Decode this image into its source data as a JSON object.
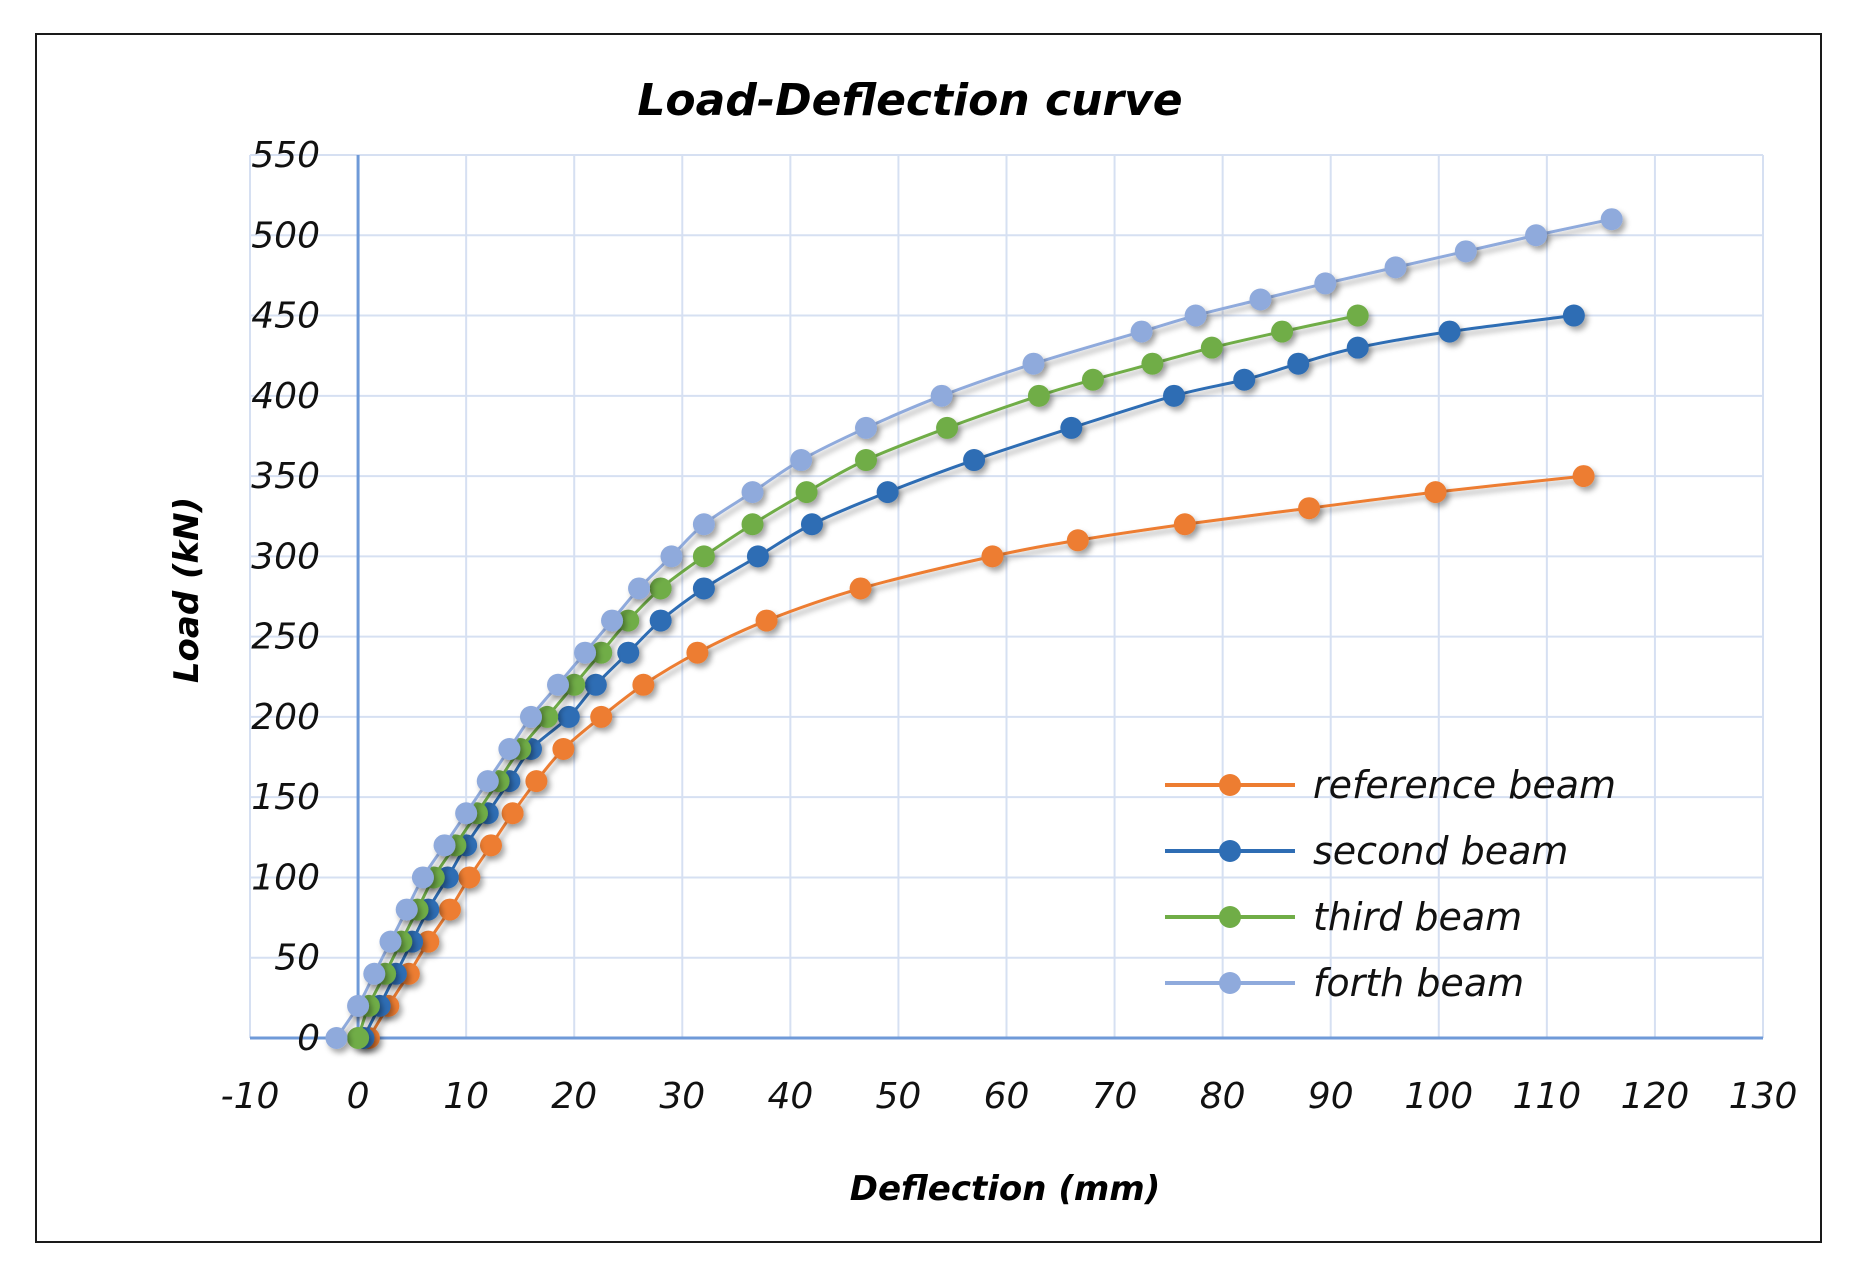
{
  "chart_data": {
    "type": "line",
    "title": "Load-Deflection curve",
    "xlabel": "Deflection (mm)",
    "ylabel": "Load (kN)",
    "xlim": [
      -10,
      130
    ],
    "ylim": [
      0,
      550
    ],
    "xticks": [
      -10,
      0,
      10,
      20,
      30,
      40,
      50,
      60,
      70,
      80,
      90,
      100,
      110,
      120,
      130
    ],
    "yticks": [
      0,
      50,
      100,
      150,
      200,
      250,
      300,
      350,
      400,
      450,
      500,
      550
    ],
    "grid": true,
    "legend_position": "bottom-right",
    "series": [
      {
        "name": "reference beam",
        "color": "#ED7D31",
        "x": [
          1,
          2.8,
          4.7,
          6.5,
          8.5,
          10.3,
          12.3,
          14.3,
          16.5,
          19,
          22.5,
          26.4,
          31.4,
          37.8,
          46.5,
          58.7,
          66.6,
          76.5,
          88,
          99.7,
          113.4
        ],
        "y": [
          0,
          20,
          40,
          60,
          80,
          100,
          120,
          140,
          160,
          180,
          200,
          220,
          240,
          260,
          280,
          300,
          310,
          320,
          330,
          340,
          350
        ]
      },
      {
        "name": "second beam",
        "color": "#2E6DB4",
        "x": [
          0.5,
          2,
          3.5,
          5,
          6.5,
          8.3,
          10,
          12,
          14,
          16,
          19.5,
          22,
          25,
          28,
          32,
          37,
          42,
          49,
          57,
          66,
          75.5,
          82,
          87,
          92.5,
          101,
          112.5
        ],
        "y": [
          0,
          20,
          40,
          60,
          80,
          100,
          120,
          140,
          160,
          180,
          200,
          220,
          240,
          260,
          280,
          300,
          320,
          340,
          360,
          380,
          400,
          410,
          420,
          430,
          440,
          450
        ]
      },
      {
        "name": "third beam",
        "color": "#70AD47",
        "x": [
          0,
          1,
          2.5,
          4,
          5.5,
          7,
          9,
          11,
          13,
          15,
          17.5,
          20,
          22.5,
          25,
          28,
          32,
          36.5,
          41.5,
          47,
          54.5,
          63,
          68,
          73.5,
          79,
          85.5,
          92.5
        ],
        "y": [
          0,
          20,
          40,
          60,
          80,
          100,
          120,
          140,
          160,
          180,
          200,
          220,
          240,
          260,
          280,
          300,
          320,
          340,
          360,
          380,
          400,
          410,
          420,
          430,
          440,
          450
        ]
      },
      {
        "name": "forth beam",
        "color": "#8FAADC",
        "x": [
          -2,
          0,
          1.5,
          3,
          4.5,
          6,
          8,
          10,
          12,
          14,
          16,
          18.5,
          21,
          23.5,
          26,
          29,
          32,
          36.5,
          41,
          47,
          54,
          62.5,
          72.5,
          77.5,
          83.5,
          89.5,
          96,
          102.5,
          109,
          116
        ],
        "y": [
          0,
          20,
          40,
          60,
          80,
          100,
          120,
          140,
          160,
          180,
          200,
          220,
          240,
          260,
          280,
          300,
          320,
          340,
          360,
          380,
          400,
          420,
          440,
          450,
          460,
          470,
          480,
          490,
          500,
          510
        ]
      }
    ]
  }
}
